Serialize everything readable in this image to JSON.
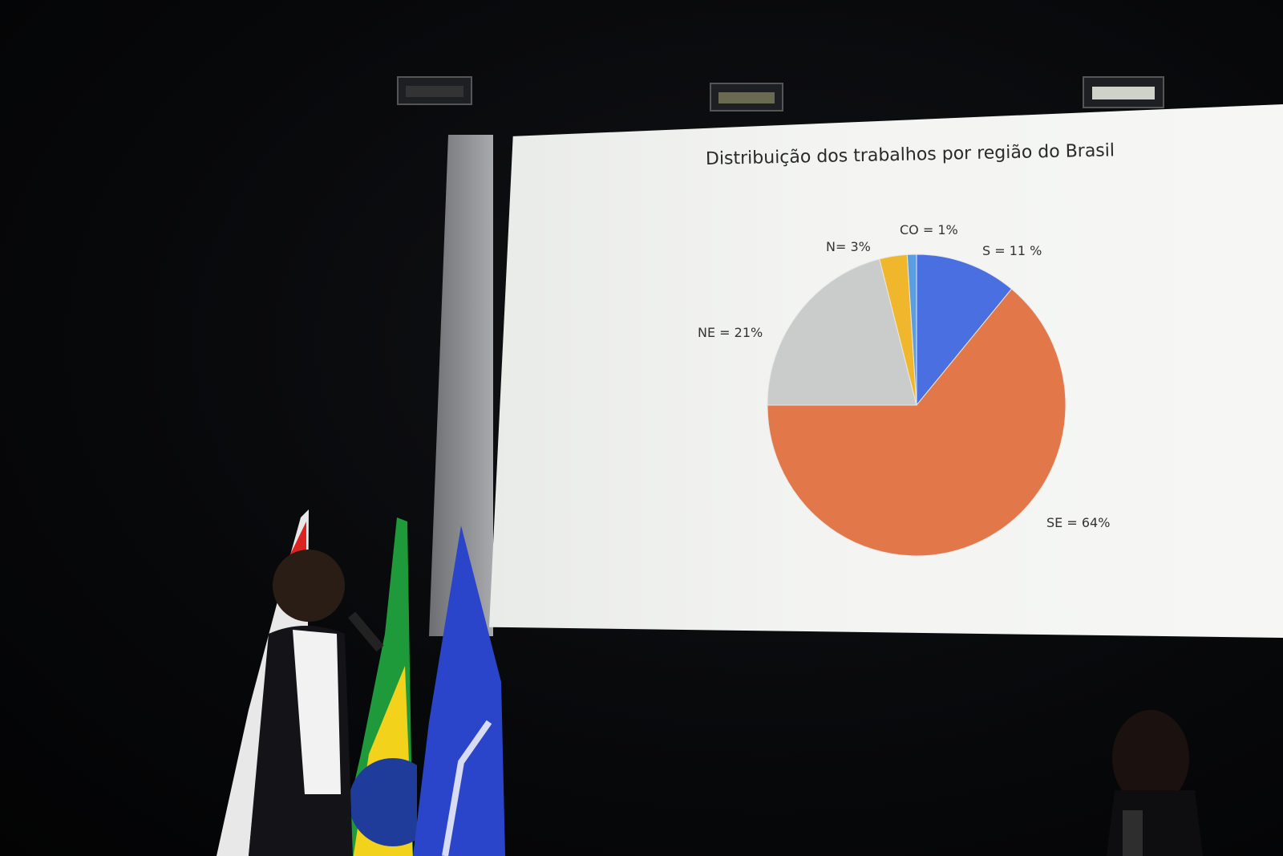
{
  "chart_data": {
    "type": "pie",
    "title": "Distribuição dos trabalhos por região do Brasil",
    "slices": [
      {
        "label": "S = 11 %",
        "value": 11,
        "color": "#4a6fe0"
      },
      {
        "label": "SE = 64%",
        "value": 64,
        "color": "#e2774a"
      },
      {
        "label": "NE = 21%",
        "value": 21,
        "color": "#c9ccca"
      },
      {
        "label": "N= 3%",
        "value": 3,
        "color": "#f0b72c"
      },
      {
        "label": "CO = 1%",
        "value": 1,
        "color": "#5a9de0"
      }
    ],
    "start": "top",
    "direction": "clockwise",
    "legend": "none"
  }
}
